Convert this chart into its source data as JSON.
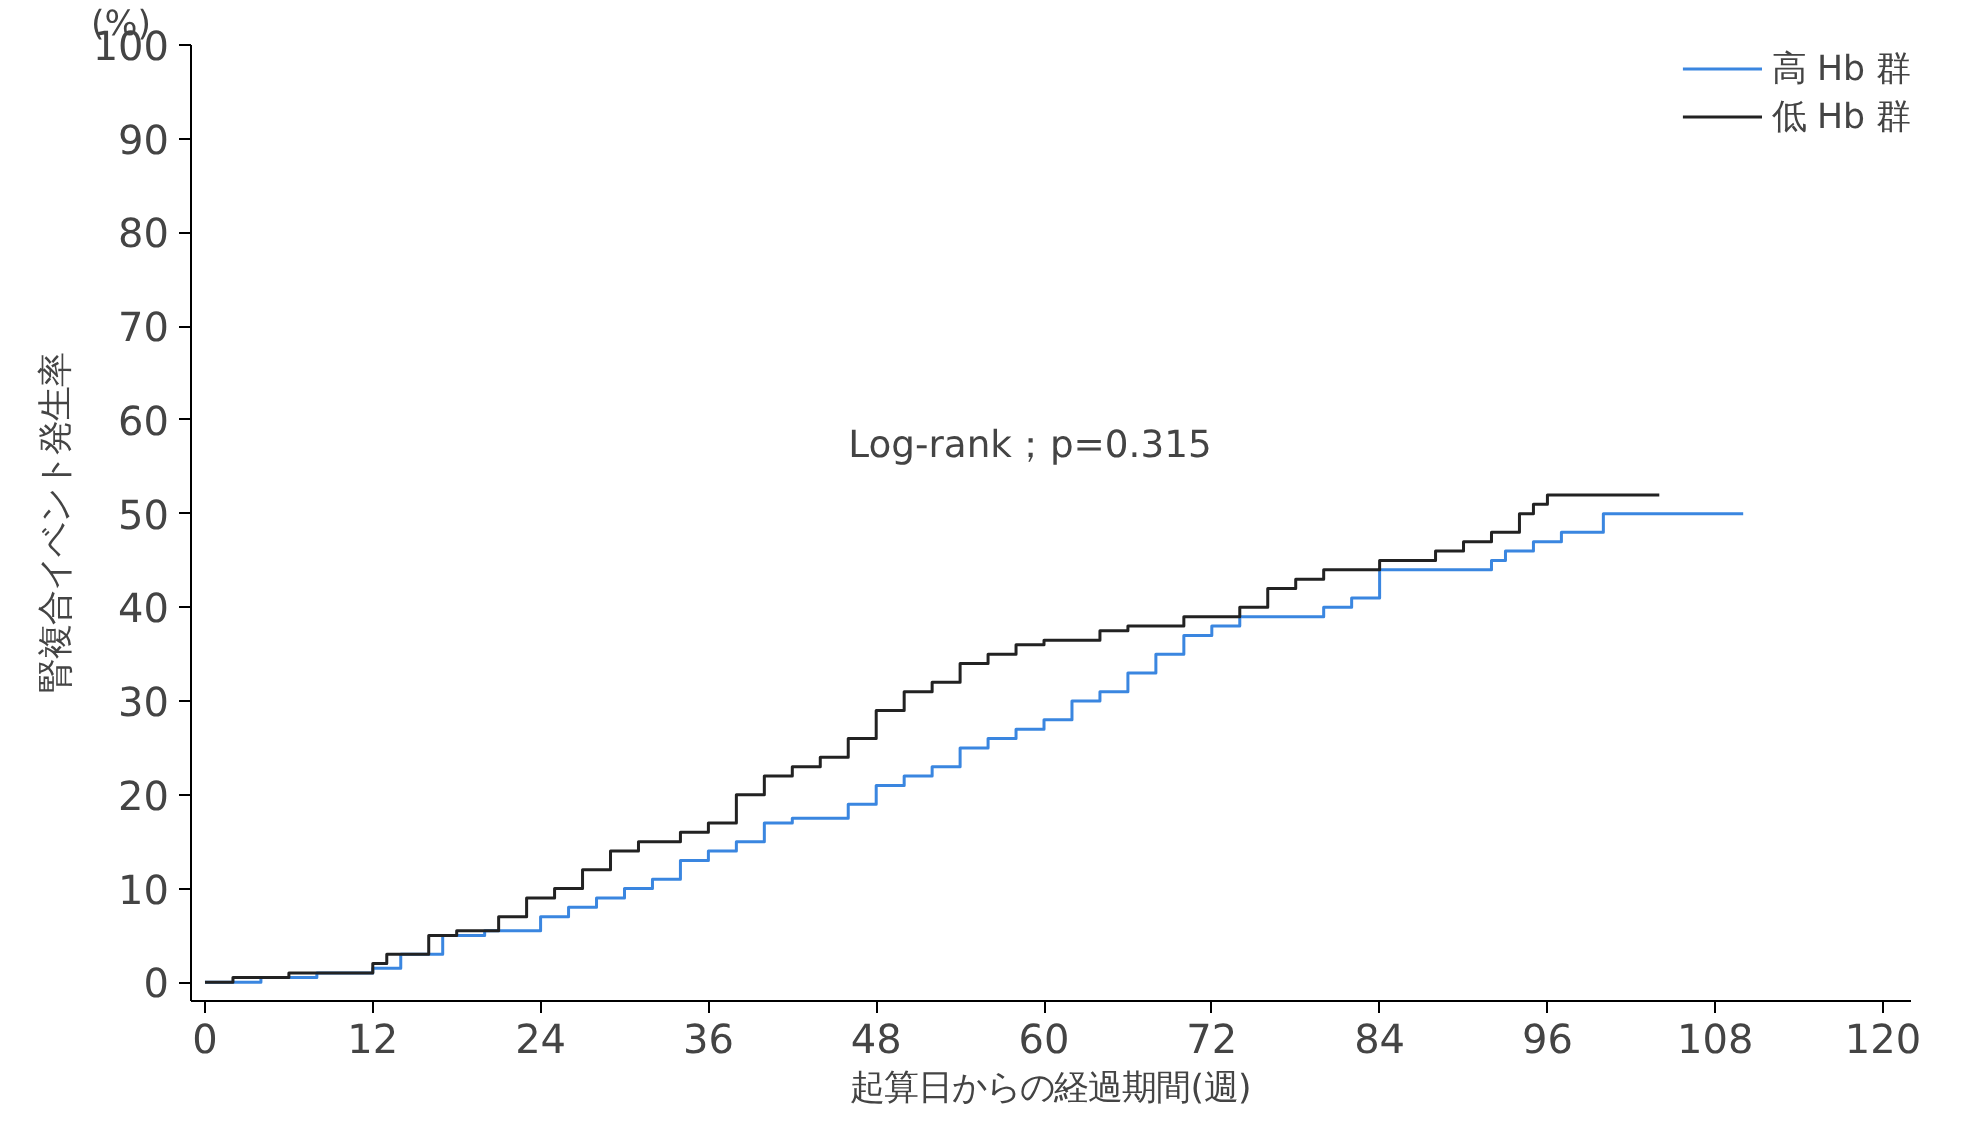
{
  "chart_data": {
    "type": "step",
    "xlabel": "起算日からの経過期間(週)",
    "ylabel": "腎複合イベント発生率",
    "annotations": [
      "(%)",
      "Log-rank；p=0.315"
    ],
    "xlim": [
      -1,
      122
    ],
    "ylim": [
      -2,
      100
    ],
    "xticks": [
      0,
      12,
      24,
      36,
      48,
      60,
      72,
      84,
      96,
      108,
      120
    ],
    "yticks": [
      0,
      10,
      20,
      30,
      40,
      50,
      60,
      70,
      80,
      90,
      100
    ],
    "grid": false,
    "legend": "top right",
    "line_style": "solid",
    "series": [
      {
        "name": "高 Hb 群",
        "color": "#3a86e0",
        "x": [
          0,
          4,
          8,
          12,
          14,
          17,
          20,
          24,
          26,
          28,
          30,
          32,
          34,
          36,
          38,
          40,
          42,
          46,
          48,
          50,
          52,
          54,
          56,
          58,
          60,
          62,
          64,
          66,
          68,
          70,
          72,
          74,
          80,
          82,
          84,
          92,
          93,
          95,
          97,
          100,
          110
        ],
        "values": [
          0,
          0.5,
          1,
          1.5,
          3,
          5,
          5.5,
          7,
          8,
          9,
          10,
          11,
          13,
          14,
          15,
          17,
          17.5,
          19,
          21,
          22,
          23,
          25,
          26,
          27,
          28,
          30,
          31,
          33,
          35,
          37,
          38,
          39,
          40,
          41,
          44,
          45,
          46,
          47,
          48,
          50,
          50
        ]
      },
      {
        "name": "低 Hb 群",
        "color": "#222222",
        "x": [
          0,
          2,
          6,
          12,
          13,
          16,
          18,
          21,
          23,
          25,
          27,
          29,
          31,
          34,
          36,
          38,
          40,
          42,
          44,
          46,
          48,
          50,
          52,
          54,
          56,
          58,
          60,
          64,
          66,
          70,
          74,
          76,
          78,
          80,
          84,
          88,
          90,
          92,
          94,
          95,
          96,
          104
        ],
        "values": [
          0,
          0.5,
          1,
          2,
          3,
          5,
          5.5,
          7,
          9,
          10,
          12,
          14,
          15,
          16,
          17,
          20,
          22,
          23,
          24,
          26,
          29,
          31,
          32,
          34,
          35,
          36,
          36.5,
          37.5,
          38,
          39,
          40,
          42,
          43,
          44,
          45,
          46,
          47,
          48,
          50,
          51,
          52,
          52
        ]
      }
    ]
  }
}
